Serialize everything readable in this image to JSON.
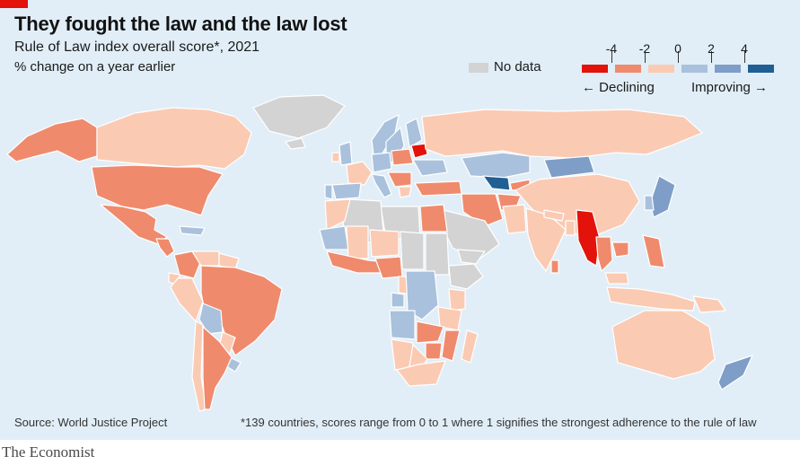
{
  "header": {
    "title": "They fought the law and the law lost",
    "subtitle": "Rule of Law index overall score*, 2021",
    "unit": "% change on a year earlier"
  },
  "legend": {
    "no_data_label": "No data",
    "ticks": [
      "-4",
      "-2",
      "0",
      "2",
      "4"
    ],
    "declining_label": "← Declining",
    "improving_label": "Improving →",
    "bins": [
      {
        "name": "below -4",
        "color": "#e3120b"
      },
      {
        "name": "-4 to -2",
        "color": "#f08a6c"
      },
      {
        "name": "-2 to 0",
        "color": "#fbcab3"
      },
      {
        "name": "0 to 2",
        "color": "#a9c1dc"
      },
      {
        "name": "2 to 4",
        "color": "#7e9ec8"
      },
      {
        "name": "above 4",
        "color": "#1f5f94"
      }
    ],
    "no_data_color": "#d3d3d3"
  },
  "colors": {
    "accent": "#e3120b",
    "background": "#e1eef7",
    "border": "#ffffff"
  },
  "footer": {
    "source": "Source: World Justice Project",
    "footnote": "*139 countries, scores range from 0 to 1 where 1 signifies the strongest adherence to the rule of law",
    "brand": "The Economist"
  },
  "regions": [
    {
      "name": "Alaska",
      "bin": 1
    },
    {
      "name": "Canada",
      "bin": 2
    },
    {
      "name": "Greenland",
      "bin": -1
    },
    {
      "name": "United States",
      "bin": 1
    },
    {
      "name": "Mexico",
      "bin": 1
    },
    {
      "name": "Central America",
      "bin": 1
    },
    {
      "name": "Caribbean",
      "bin": 3
    },
    {
      "name": "Colombia",
      "bin": 1
    },
    {
      "name": "Venezuela",
      "bin": 2
    },
    {
      "name": "Guianas",
      "bin": 2
    },
    {
      "name": "Ecuador",
      "bin": 2
    },
    {
      "name": "Peru",
      "bin": 2
    },
    {
      "name": "Brazil",
      "bin": 1
    },
    {
      "name": "Bolivia",
      "bin": 3
    },
    {
      "name": "Paraguay",
      "bin": 2
    },
    {
      "name": "Uruguay",
      "bin": 3
    },
    {
      "name": "Chile",
      "bin": 2
    },
    {
      "name": "Argentina",
      "bin": 1
    },
    {
      "name": "Iceland",
      "bin": -1
    },
    {
      "name": "United Kingdom",
      "bin": 3
    },
    {
      "name": "Ireland",
      "bin": 2
    },
    {
      "name": "Norway",
      "bin": 3
    },
    {
      "name": "Sweden",
      "bin": 3
    },
    {
      "name": "Finland",
      "bin": 3
    },
    {
      "name": "France",
      "bin": 2
    },
    {
      "name": "Spain",
      "bin": 3
    },
    {
      "name": "Portugal",
      "bin": 3
    },
    {
      "name": "Germany",
      "bin": 3
    },
    {
      "name": "Poland",
      "bin": 1
    },
    {
      "name": "Belarus",
      "bin": 0
    },
    {
      "name": "Ukraine",
      "bin": 3
    },
    {
      "name": "Italy",
      "bin": 3
    },
    {
      "name": "Balkans",
      "bin": 1
    },
    {
      "name": "Greece",
      "bin": 2
    },
    {
      "name": "Turkey",
      "bin": 1
    },
    {
      "name": "Russia",
      "bin": 2
    },
    {
      "name": "Kazakhstan",
      "bin": 3
    },
    {
      "name": "Uzbekistan",
      "bin": 5
    },
    {
      "name": "Kyrgyzstan",
      "bin": 1
    },
    {
      "name": "Mongolia",
      "bin": 4
    },
    {
      "name": "China",
      "bin": 2
    },
    {
      "name": "Japan",
      "bin": 4
    },
    {
      "name": "South Korea",
      "bin": 3
    },
    {
      "name": "Iran",
      "bin": 1
    },
    {
      "name": "Afghanistan",
      "bin": 1
    },
    {
      "name": "Pakistan",
      "bin": 2
    },
    {
      "name": "India",
      "bin": 2
    },
    {
      "name": "Sri Lanka",
      "bin": 1
    },
    {
      "name": "Nepal",
      "bin": 2
    },
    {
      "name": "Bangladesh",
      "bin": 2
    },
    {
      "name": "Myanmar",
      "bin": 0
    },
    {
      "name": "Thailand",
      "bin": 1
    },
    {
      "name": "Cambodia",
      "bin": 1
    },
    {
      "name": "Malaysia",
      "bin": 2
    },
    {
      "name": "Indonesia",
      "bin": 2
    },
    {
      "name": "Philippines",
      "bin": 1
    },
    {
      "name": "Australia",
      "bin": 2
    },
    {
      "name": "New Zealand",
      "bin": 4
    },
    {
      "name": "Papua New Guinea",
      "bin": 2
    },
    {
      "name": "Saudi Arabia",
      "bin": -1
    },
    {
      "name": "Yemen",
      "bin": -1
    },
    {
      "name": "Egypt",
      "bin": 1
    },
    {
      "name": "Libya",
      "bin": -1
    },
    {
      "name": "Algeria",
      "bin": -1
    },
    {
      "name": "Morocco",
      "bin": 2
    },
    {
      "name": "Mauritania",
      "bin": 3
    },
    {
      "name": "Mali",
      "bin": 2
    },
    {
      "name": "Niger",
      "bin": 2
    },
    {
      "name": "Chad",
      "bin": -1
    },
    {
      "name": "Sudan",
      "bin": -1
    },
    {
      "name": "Ethiopia",
      "bin": -1
    },
    {
      "name": "West Africa coast",
      "bin": 1
    },
    {
      "name": "Nigeria",
      "bin": 1
    },
    {
      "name": "Cameroon",
      "bin": 2
    },
    {
      "name": "Gabon",
      "bin": 3
    },
    {
      "name": "DR Congo",
      "bin": 3
    },
    {
      "name": "Kenya",
      "bin": 2
    },
    {
      "name": "Tanzania",
      "bin": 2
    },
    {
      "name": "Angola",
      "bin": 3
    },
    {
      "name": "Zambia",
      "bin": 1
    },
    {
      "name": "Mozambique",
      "bin": 1
    },
    {
      "name": "Zimbabwe",
      "bin": 1
    },
    {
      "name": "Namibia",
      "bin": 2
    },
    {
      "name": "Botswana",
      "bin": 2
    },
    {
      "name": "South Africa",
      "bin": 2
    },
    {
      "name": "Madagascar",
      "bin": 2
    }
  ]
}
